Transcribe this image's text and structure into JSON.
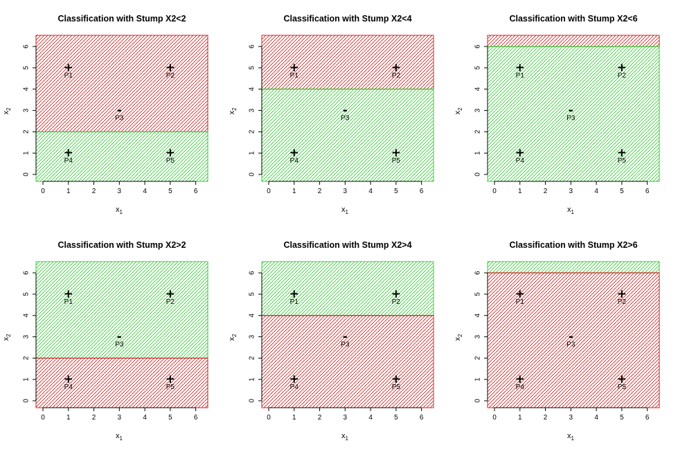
{
  "window_title": "",
  "chart_data": {
    "type": "scatter",
    "layout_grid": {
      "rows": 2,
      "cols": 3
    },
    "axes": {
      "xlabel": "x",
      "xlabel_subscript": "1",
      "ylabel": "x",
      "ylabel_subscript": "2",
      "xlim": [
        0,
        6.2
      ],
      "ylim": [
        0,
        6.2
      ],
      "xticks": [
        "0",
        "1",
        "2",
        "3",
        "4",
        "5",
        "6"
      ],
      "yticks": [
        "0",
        "1",
        "2",
        "3",
        "4",
        "5",
        "6"
      ]
    },
    "points": [
      {
        "label": "P1",
        "x": 1,
        "y": 5,
        "class": "+",
        "symbol": "+"
      },
      {
        "label": "P2",
        "x": 5,
        "y": 5,
        "class": "+",
        "symbol": "+"
      },
      {
        "label": "P3",
        "x": 3,
        "y": 3,
        "class": "-",
        "symbol": "-"
      },
      {
        "label": "P4",
        "x": 1,
        "y": 1,
        "class": "+",
        "symbol": "+"
      },
      {
        "label": "P5",
        "x": 5,
        "y": 1,
        "class": "+",
        "symbol": "+"
      }
    ],
    "colors": {
      "positive_region": "#33cc33",
      "negative_region": "#cc2222"
    },
    "panels": [
      {
        "title": "Classification with Stump X2<2",
        "threshold": 2,
        "below_region": "positive",
        "above_region": "negative"
      },
      {
        "title": "Classification with Stump X2<4",
        "threshold": 4,
        "below_region": "positive",
        "above_region": "negative"
      },
      {
        "title": "Classification with Stump X2<6",
        "threshold": 6,
        "below_region": "positive",
        "above_region": "negative"
      },
      {
        "title": "Classification with Stump X2>2",
        "threshold": 2,
        "below_region": "negative",
        "above_region": "positive"
      },
      {
        "title": "Classification with Stump X2>4",
        "threshold": 4,
        "below_region": "negative",
        "above_region": "positive"
      },
      {
        "title": "Classification with Stump X2>6",
        "threshold": 6,
        "below_region": "negative",
        "above_region": "positive"
      }
    ]
  }
}
